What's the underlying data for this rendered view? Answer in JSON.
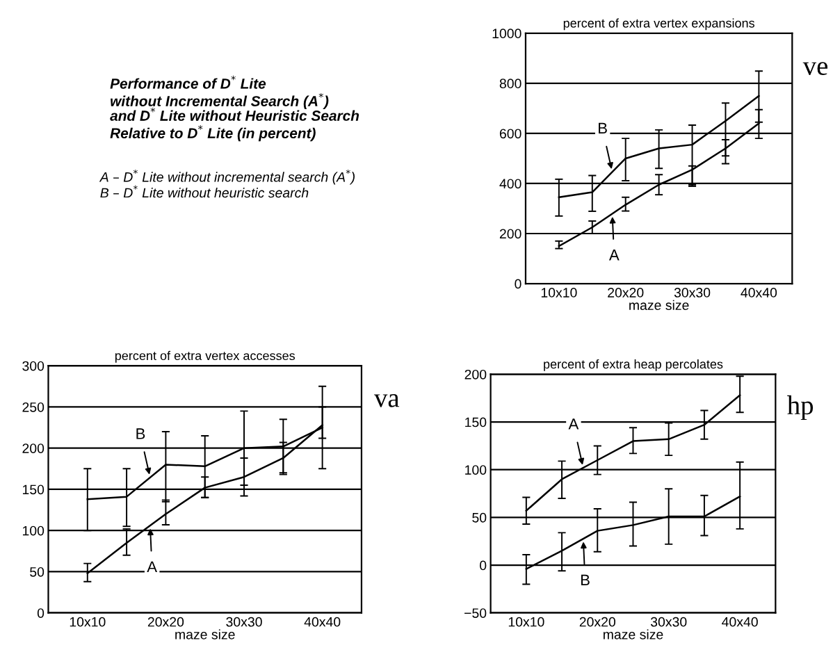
{
  "chart_data": [
    {
      "type": "other",
      "title": "Performance of D$^{*}$ Lite\nwithout Incremental Search (A$^{*}$)\nand D$^{*}$ Lite without Heuristic Search\nRelative to D$^{*}$ Lite (in percent)",
      "annotations": [
        "A – D$^{*}$ Lite without incremental search (A$^{*}$)",
        "B – D$^{*}$ Lite without heuristic search"
      ]
    },
    {
      "type": "line",
      "title": "percent of extra vertex expansions",
      "xlabel": "maze size",
      "categories": [
        "10x10",
        null,
        "20x20",
        null,
        "30x30",
        null,
        "40x40"
      ],
      "ylim": [
        0,
        1000
      ],
      "yticks": [
        0,
        200,
        400,
        600,
        800,
        1000
      ],
      "grid": "y",
      "series": [
        {
          "name": "B",
          "color": "#000000",
          "values": [
            345,
            365,
            500,
            540,
            555,
            650,
            750
          ],
          "errors": [
            [
              270,
              417
            ],
            [
              289,
              432
            ],
            [
              411,
              580
            ],
            [
              460,
              614
            ],
            [
              389,
              633
            ],
            [
              479,
              721
            ],
            [
              645,
              849
            ]
          ]
        },
        {
          "name": "A",
          "color": "#000000",
          "values": [
            150,
            225,
            315,
            395,
            455,
            540,
            640
          ],
          "errors": [
            [
              140,
              170
            ],
            [
              200,
              250
            ],
            [
              290,
              345
            ],
            [
              355,
              435
            ],
            [
              395,
              470
            ],
            [
              510,
              575
            ],
            [
              580,
              695
            ]
          ]
        }
      ],
      "annotations": [
        "ve"
      ]
    },
    {
      "type": "line",
      "title": "percent of extra vertex accesses",
      "xlabel": "maze size",
      "categories": [
        "10x10",
        null,
        "20x20",
        null,
        "30x30",
        null,
        "40x40"
      ],
      "ylim": [
        0,
        300
      ],
      "yticks": [
        0,
        50,
        100,
        150,
        200,
        250,
        300
      ],
      "grid": "y",
      "series": [
        {
          "name": "B",
          "color": "#000000",
          "values": [
            138,
            141,
            180,
            178,
            200,
            202,
            225
          ],
          "errors": [
            [
              100,
              175
            ],
            [
              105,
              175
            ],
            [
              135,
              220
            ],
            [
              140,
              215
            ],
            [
              155,
              245
            ],
            [
              170,
              235
            ],
            [
              175,
              275
            ]
          ]
        },
        {
          "name": "A",
          "color": "#000000",
          "values": [
            48,
            85,
            120,
            152,
            165,
            188,
            228
          ],
          "errors": [
            [
              38,
              60
            ],
            [
              70,
              102
            ],
            [
              107,
              137
            ],
            [
              140,
              165
            ],
            [
              142,
              188
            ],
            [
              168,
              207
            ],
            [
              212,
              250
            ]
          ]
        }
      ],
      "annotations": [
        "va"
      ]
    },
    {
      "type": "line",
      "title": "percent of extra heap percolates",
      "xlabel": "maze size",
      "categories": [
        "10x10",
        null,
        "20x20",
        null,
        "30x30",
        null,
        "40x40"
      ],
      "ylim": [
        -50,
        200
      ],
      "yticks": [
        {
          "value": -50,
          "label": "−50"
        },
        0,
        50,
        100,
        150,
        200
      ],
      "grid": "y",
      "series": [
        {
          "name": "A",
          "color": "#000000",
          "values": [
            57,
            90,
            110,
            130,
            132,
            147,
            178
          ],
          "errors": [
            [
              43,
              71
            ],
            [
              70,
              109
            ],
            [
              95,
              125
            ],
            [
              117,
              144
            ],
            [
              115,
              149
            ],
            [
              132,
              162
            ],
            [
              160,
              198
            ]
          ]
        },
        {
          "name": "B",
          "color": "#000000",
          "values": [
            -4,
            15,
            36,
            42,
            51,
            51,
            72
          ],
          "errors": [
            [
              -20,
              11
            ],
            [
              -6,
              34
            ],
            [
              14,
              59
            ],
            [
              20,
              66
            ],
            [
              22,
              80
            ],
            [
              31,
              73
            ],
            [
              38,
              108
            ]
          ]
        }
      ],
      "annotations": [
        "hp"
      ]
    }
  ]
}
